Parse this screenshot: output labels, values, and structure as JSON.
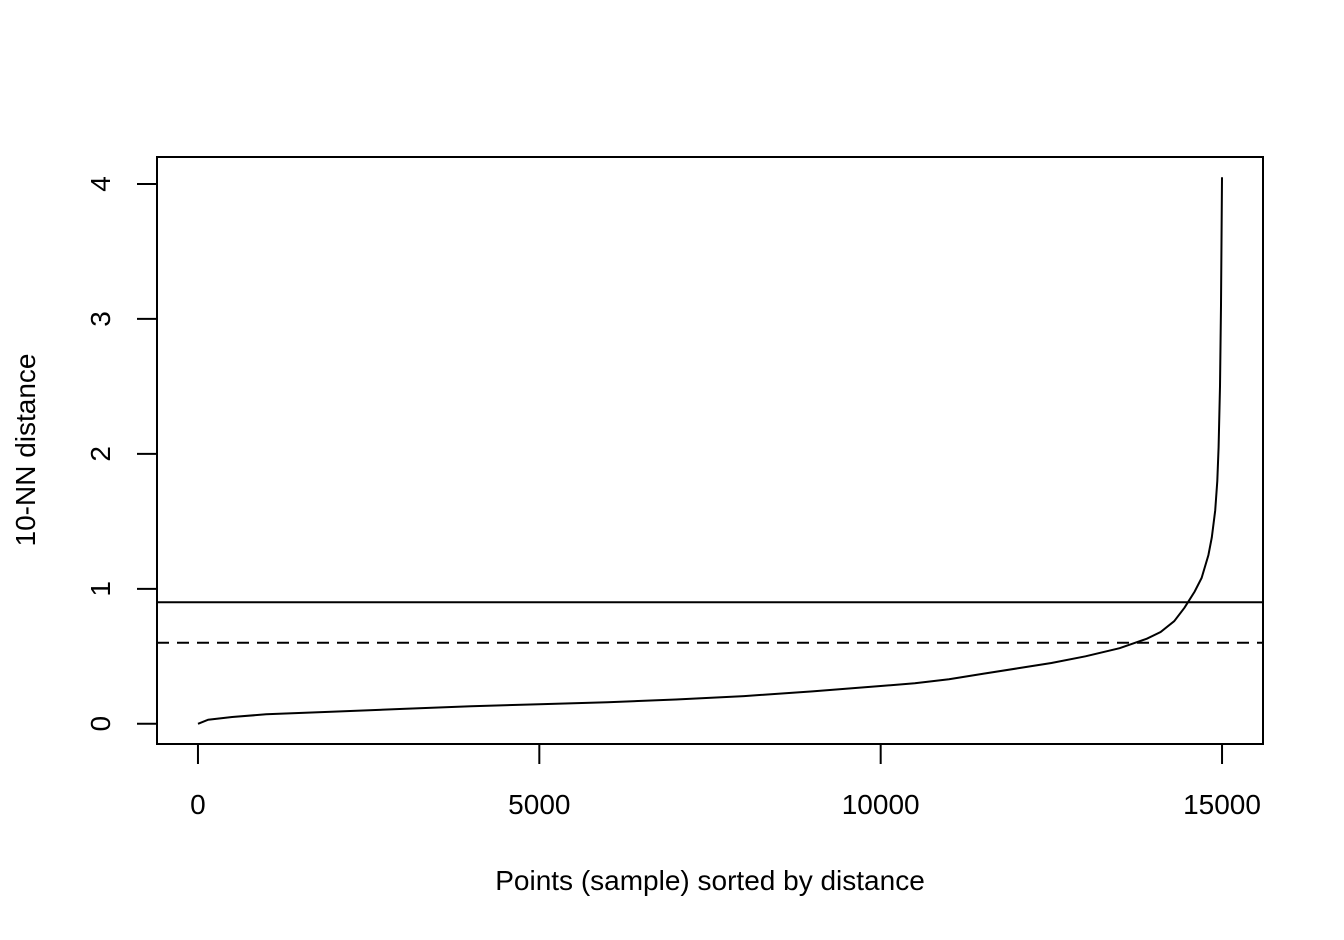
{
  "chart_data": {
    "type": "line",
    "title": "",
    "xlabel": "Points (sample) sorted by distance",
    "ylabel": "10-NN distance",
    "xlim": [
      -600,
      15600
    ],
    "ylim": [
      -0.15,
      4.2
    ],
    "grid": false,
    "x_ticks": [
      0,
      5000,
      10000,
      15000
    ],
    "x_tick_labels": [
      "0",
      "5000",
      "10000",
      "15000"
    ],
    "y_ticks": [
      0,
      1,
      2,
      3,
      4
    ],
    "y_tick_labels": [
      "0",
      "1",
      "2",
      "3",
      "4"
    ],
    "series": [
      {
        "x": [
          0,
          150,
          500,
          1000,
          2000,
          3000,
          4000,
          5000,
          6000,
          7000,
          8000,
          9000,
          10000,
          10500,
          11000,
          11500,
          12000,
          12500,
          13000,
          13500,
          13900,
          14100,
          14300,
          14450,
          14500,
          14600,
          14700,
          14800,
          14850,
          14900,
          14930,
          14950,
          14970,
          14985,
          15000
        ],
        "y": [
          0.0,
          0.03,
          0.05,
          0.07,
          0.09,
          0.11,
          0.13,
          0.145,
          0.16,
          0.18,
          0.205,
          0.24,
          0.28,
          0.3,
          0.33,
          0.37,
          0.41,
          0.45,
          0.5,
          0.56,
          0.63,
          0.68,
          0.76,
          0.86,
          0.9,
          0.98,
          1.08,
          1.25,
          1.38,
          1.58,
          1.8,
          2.05,
          2.5,
          3.1,
          4.05
        ]
      }
    ],
    "reference_lines": [
      {
        "y": 0.9,
        "style": "solid"
      },
      {
        "y": 0.6,
        "style": "dashed"
      }
    ]
  }
}
